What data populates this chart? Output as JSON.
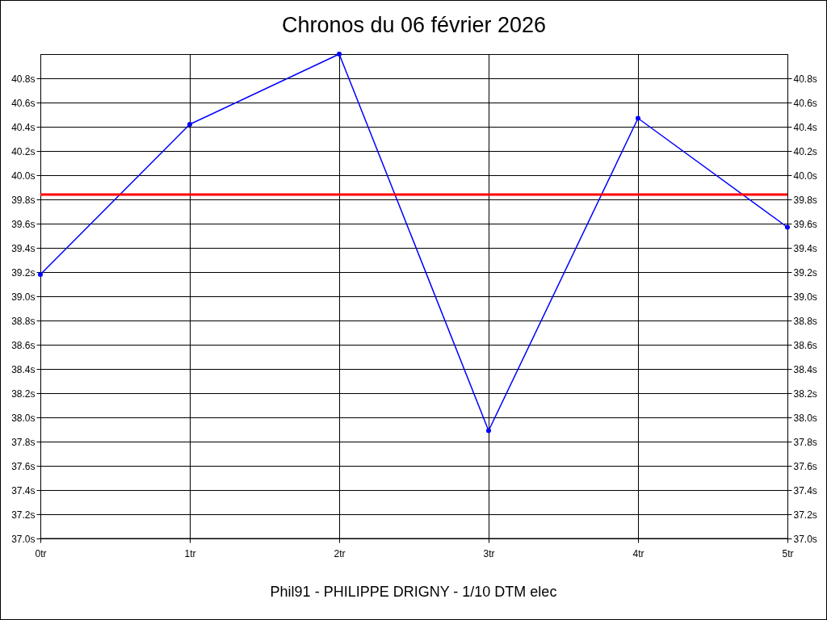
{
  "chart_data": {
    "type": "line",
    "title": "Chronos du 06 février 2026",
    "categories": [
      "0tr",
      "1tr",
      "2tr",
      "3tr",
      "4tr",
      "5tr"
    ],
    "series": [
      {
        "color": "#0000ff",
        "values": [
          39.18,
          40.42,
          41.0,
          37.89,
          40.47,
          39.57
        ]
      }
    ],
    "ylim": [
      37,
      41
    ],
    "yticks": [
      {
        "value": 37.0,
        "label": "37.0s"
      },
      {
        "value": 37.2,
        "label": "37.2s"
      },
      {
        "value": 37.4,
        "label": "37.4s"
      },
      {
        "value": 37.6,
        "label": "37.6s"
      },
      {
        "value": 37.8,
        "label": "37.8s"
      },
      {
        "value": 38.0,
        "label": "38.0s"
      },
      {
        "value": 38.2,
        "label": "38.2s"
      },
      {
        "value": 38.4,
        "label": "38.4s"
      },
      {
        "value": 38.6,
        "label": "38.6s"
      },
      {
        "value": 38.8,
        "label": "38.8s"
      },
      {
        "value": 39.0,
        "label": "39.0s"
      },
      {
        "value": 39.2,
        "label": "39.2s"
      },
      {
        "value": 39.4,
        "label": "39.4s"
      },
      {
        "value": 39.6,
        "label": "39.6s"
      },
      {
        "value": 39.8,
        "label": "39.8s"
      },
      {
        "value": 40.0,
        "label": "40.0s"
      },
      {
        "value": 40.2,
        "label": "40.2s"
      },
      {
        "value": 40.4,
        "label": "40.4s"
      },
      {
        "value": 40.6,
        "label": "40.6s"
      },
      {
        "value": 40.8,
        "label": "40.8s"
      }
    ],
    "y2lim": [
      37,
      41
    ],
    "y2ticks": [
      {
        "value": 37.0,
        "label": "37.0s"
      },
      {
        "value": 37.2,
        "label": "37.2s"
      },
      {
        "value": 37.4,
        "label": "37.4s"
      },
      {
        "value": 37.6,
        "label": "37.6s"
      },
      {
        "value": 37.8,
        "label": "37.8s"
      },
      {
        "value": 38.0,
        "label": "38.0s"
      },
      {
        "value": 38.2,
        "label": "38.2s"
      },
      {
        "value": 38.4,
        "label": "38.4s"
      },
      {
        "value": 38.6,
        "label": "38.6s"
      },
      {
        "value": 38.8,
        "label": "38.8s"
      },
      {
        "value": 39.0,
        "label": "39.0s"
      },
      {
        "value": 39.2,
        "label": "39.2s"
      },
      {
        "value": 39.4,
        "label": "39.4s"
      },
      {
        "value": 39.6,
        "label": "39.6s"
      },
      {
        "value": 39.8,
        "label": "39.8s"
      },
      {
        "value": 40.0,
        "label": "40.0s"
      },
      {
        "value": 40.2,
        "label": "40.2s"
      },
      {
        "value": 40.4,
        "label": "40.4s"
      },
      {
        "value": 40.6,
        "label": "40.6s"
      },
      {
        "value": 40.8,
        "label": "40.8s"
      }
    ],
    "ref_lines": [
      {
        "axis": "y",
        "value": 39.84,
        "color": "#ff0000"
      }
    ],
    "grid": true,
    "marker": "circle",
    "line_style": "solid",
    "annotations": [
      "Phil91 - PHILIPPE DRIGNY - 1/10 DTM elec"
    ]
  }
}
